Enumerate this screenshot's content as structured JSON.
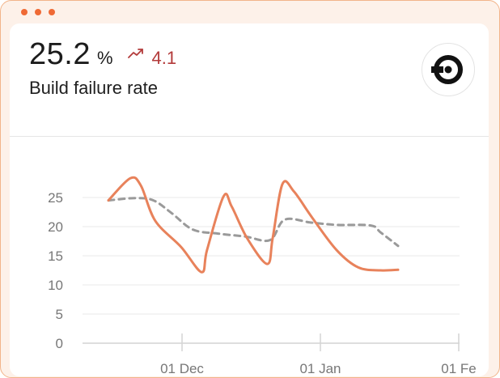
{
  "window": {
    "dots": [
      "dot-1",
      "dot-2",
      "dot-3"
    ],
    "accent": "#ef6a35",
    "frame_background": "#fdf1e9"
  },
  "metric": {
    "value": "25.2",
    "unit": "%",
    "trend_icon": "trending-up-icon",
    "trend_value": "4.1",
    "trend_color": "#b33b3b",
    "label": "Build failure rate",
    "logo_icon": "circleci-logo-icon"
  },
  "chart_data": {
    "type": "line",
    "x_tick_labels": [
      "01 Dec",
      "01 Jan",
      "01 Fe"
    ],
    "y_tick_labels": [
      "0",
      "5",
      "10",
      "15",
      "20",
      "25"
    ],
    "ylim": [
      0,
      27
    ],
    "grid": true,
    "series": [
      {
        "style": "solid",
        "color": "#e8825b",
        "points": [
          {
            "x": -16.5,
            "y": 24.5
          },
          {
            "x": -11.6,
            "y": 28.3
          },
          {
            "x": -9.2,
            "y": 27.0
          },
          {
            "x": -6.0,
            "y": 21.0
          },
          {
            "x": -0.2,
            "y": 16.5
          },
          {
            "x": 4.4,
            "y": 12.2
          },
          {
            "x": 5.6,
            "y": 16.0
          },
          {
            "x": 9.3,
            "y": 25.2
          },
          {
            "x": 11.1,
            "y": 23.5
          },
          {
            "x": 14.6,
            "y": 18.0
          },
          {
            "x": 19.1,
            "y": 13.6
          },
          {
            "x": 20.3,
            "y": 18.0
          },
          {
            "x": 22.5,
            "y": 27.3
          },
          {
            "x": 25.1,
            "y": 26.0
          },
          {
            "x": 29.2,
            "y": 21.5
          },
          {
            "x": 34.6,
            "y": 16.0
          },
          {
            "x": 39.5,
            "y": 13.0
          },
          {
            "x": 44.5,
            "y": 12.5
          },
          {
            "x": 48.4,
            "y": 12.6
          }
        ]
      },
      {
        "style": "dashed",
        "color": "#9a9a9a",
        "points": [
          {
            "x": -16.5,
            "y": 24.5
          },
          {
            "x": -10.5,
            "y": 24.9
          },
          {
            "x": -6.4,
            "y": 24.5
          },
          {
            "x": -2.3,
            "y": 22.3
          },
          {
            "x": 2.4,
            "y": 19.5
          },
          {
            "x": 8.1,
            "y": 18.8
          },
          {
            "x": 14.2,
            "y": 18.3
          },
          {
            "x": 19.7,
            "y": 17.7
          },
          {
            "x": 23.0,
            "y": 21.2
          },
          {
            "x": 28.9,
            "y": 20.7
          },
          {
            "x": 34.6,
            "y": 20.3
          },
          {
            "x": 42.3,
            "y": 20.2
          },
          {
            "x": 44.5,
            "y": 19.0
          },
          {
            "x": 48.4,
            "y": 16.7
          }
        ]
      }
    ]
  }
}
